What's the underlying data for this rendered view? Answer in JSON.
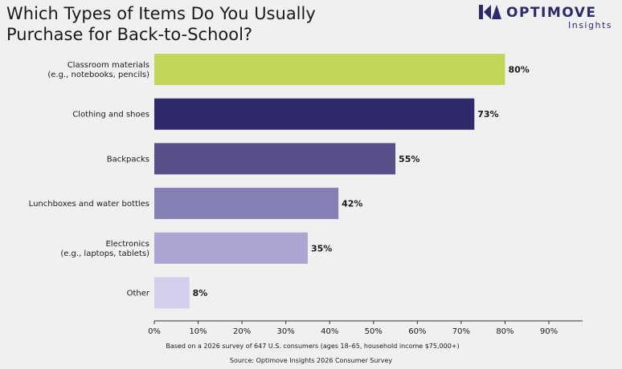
{
  "header": {
    "title": "Which Types of Items Do You Usually Purchase for Back-to-School?"
  },
  "logo": {
    "name": "OPTIMOVE",
    "subtitle": "Insights",
    "icon": "optimove-logo-icon",
    "color": "#2b2b6b"
  },
  "chart_data": {
    "type": "bar",
    "orientation": "horizontal",
    "categories": [
      "Classroom materials\n(e.g., notebooks, pencils)",
      "Clothing and shoes",
      "Backpacks",
      "Lunchboxes and water bottles",
      "Electronics\n(e.g., laptops, tablets)",
      "Other"
    ],
    "values": [
      80,
      73,
      55,
      42,
      35,
      8
    ],
    "value_labels": [
      "80%",
      "73%",
      "55%",
      "42%",
      "35%",
      "8%"
    ],
    "colors": [
      "#c3d65a",
      "#2e2a6b",
      "#575089",
      "#8480b3",
      "#aba6d1",
      "#d2cfec"
    ],
    "xlim": [
      0,
      90
    ],
    "xticks": [
      0,
      10,
      20,
      30,
      40,
      50,
      60,
      70,
      80,
      90
    ],
    "xtick_labels": [
      "0%",
      "10%",
      "20%",
      "30%",
      "40%",
      "50%",
      "60%",
      "70%",
      "80%",
      "90%"
    ],
    "grid": false
  },
  "footer": {
    "note": "Based on a 2026 survey of 647 U.S. consumers (ages 18–65, household income $75,000+)",
    "source": "Source: Optimove Insights 2026 Consumer Survey"
  }
}
